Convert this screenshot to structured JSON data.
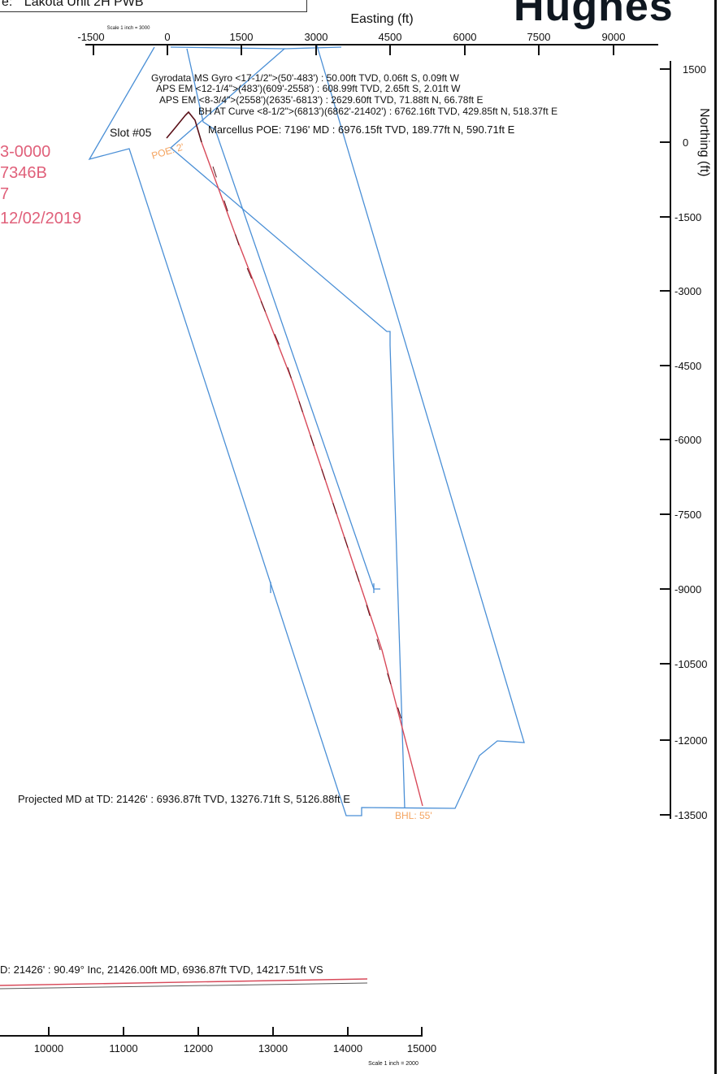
{
  "header": {
    "partial_label": "e:",
    "wellbore_name": "Lakota Unit 2H PWB"
  },
  "logo_partial": "Hughes",
  "left_info_partial": [
    "3-0000",
    "7346B",
    "7",
    "12/02/2019"
  ],
  "plan_view": {
    "x_axis_title": "Easting (ft)",
    "x_scale_note": "Scale 1 inch = 3000",
    "x_ticks": [
      "-1500",
      "0",
      "1500",
      "3000",
      "4500",
      "6000",
      "7500",
      "9000"
    ],
    "y_axis_title": "Northing (ft)",
    "y_ticks": [
      "1500",
      "0",
      "-1500",
      "-3000",
      "-4500",
      "-6000",
      "-7500",
      "-9000",
      "-10500",
      "-12000",
      "-13500"
    ],
    "slot_label": "Slot #05",
    "poe_label": "POE: 2'",
    "bhl_label": "BHL: 55'",
    "annotations": [
      "Gyrodata MS Gyro <17-1/2\">(50'-483') : 50.00ft TVD, 0.06ft S, 0.09ft W",
      "APS EM <12-1/4\">(483')(609'-2558') : 608.99ft TVD, 2.65ft S, 2.01ft W",
      "APS EM <8-3/4\">(2558')(2635'-6813') : 2629.60ft TVD, 71.88ft N, 66.78ft E",
      "BH AT Curve <8-1/2\">(6813')(6862'-21402') : 6762.16ft TVD, 429.85ft N, 518.37ft E",
      "Marcellus POE: 7196' MD : 6976.15ft TVD, 189.77ft N, 590.71ft E"
    ],
    "projected_td": "Projected MD at TD: 21426' : 6936.87ft TVD, 13276.71ft S, 5126.88ft E"
  },
  "section_view": {
    "td_label_partial": "D: 21426' : 90.49° Inc, 21426.00ft MD, 6936.87ft TVD, 14217.51ft VS",
    "x_ticks": [
      "10000",
      "11000",
      "12000",
      "13000",
      "14000",
      "15000"
    ],
    "x_scale_note": "Scale 1 inch = 2000"
  },
  "colors": {
    "lease_line": "#4a8fd6",
    "well_path": "#d84a5a",
    "well_path_dark": "#5a1018",
    "label_pink": "#e0607a",
    "label_orange": "#f4a460"
  }
}
